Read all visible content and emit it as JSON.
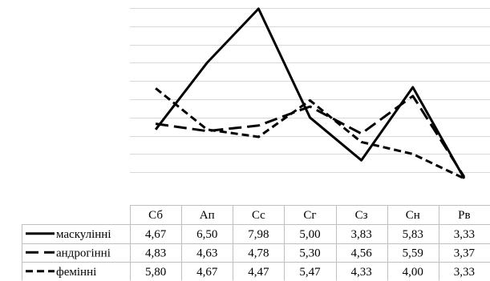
{
  "chart_data": {
    "type": "line",
    "title": "",
    "xlabel": "",
    "ylabel": "",
    "ylim": [
      3,
      8
    ],
    "grid": true,
    "legend": "data table rows",
    "categories": [
      "Сб",
      "Ап",
      "Сс",
      "Сг",
      "Сз",
      "Сн",
      "Рв"
    ],
    "series": [
      {
        "name": "маскулінні",
        "style": "solid",
        "values": [
          4.67,
          6.5,
          7.98,
          5.0,
          3.83,
          5.83,
          3.33
        ],
        "labels": [
          "4,67",
          "6,50",
          "7,98",
          "5,00",
          "3,83",
          "5,83",
          "3,33"
        ]
      },
      {
        "name": "андрогінні",
        "style": "long-dash",
        "values": [
          4.83,
          4.63,
          4.78,
          5.3,
          4.56,
          5.59,
          3.37
        ],
        "labels": [
          "4,83",
          "4,63",
          "4,78",
          "5,30",
          "4,56",
          "5,59",
          "3,37"
        ]
      },
      {
        "name": "фемінні",
        "style": "short-dash",
        "values": [
          5.8,
          4.67,
          4.47,
          5.47,
          4.33,
          4.0,
          3.33
        ],
        "labels": [
          "5,80",
          "4,67",
          "4,47",
          "5,47",
          "4,33",
          "4,00",
          "3,33"
        ]
      }
    ]
  }
}
